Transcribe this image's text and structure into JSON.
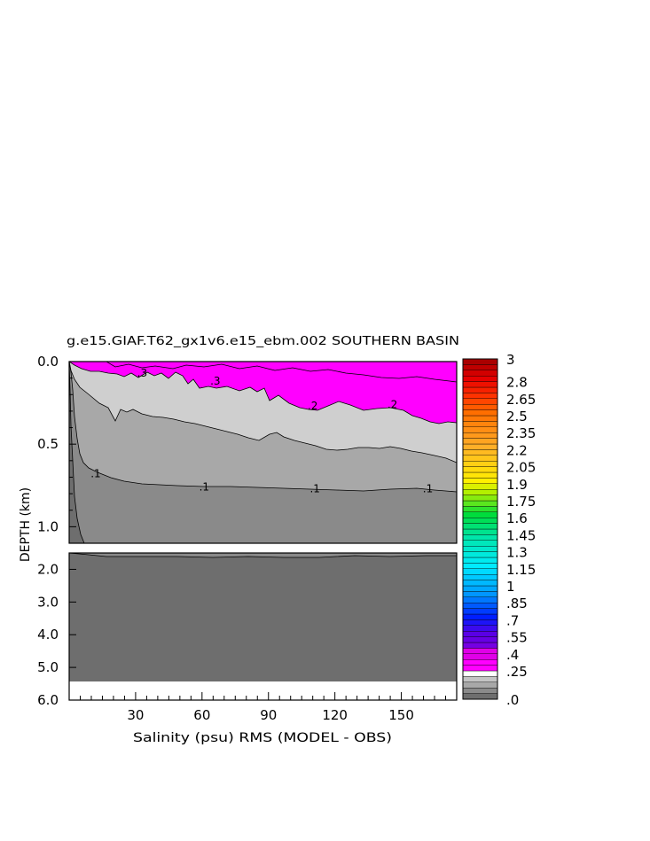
{
  "chart_data": {
    "type": "contour",
    "title": "g.e15.GIAF.T62_gx1v6.e15_ebm.002 SOUTHERN BASIN",
    "xlabel": "Salinity (psu) RMS (MODEL - OBS)",
    "ylabel": "DEPTH (km)",
    "x_ticks": [
      30,
      60,
      90,
      120,
      150
    ],
    "xlim": [
      0,
      175
    ],
    "upper_panel": {
      "ylim": [
        0.0,
        1.1
      ],
      "y_ticks": [
        "0.0",
        "0.5",
        "1.0"
      ]
    },
    "lower_panel": {
      "ylim": [
        1.5,
        6.0
      ],
      "y_ticks": [
        "2.0",
        "3.0",
        "4.0",
        "5.0",
        "6.0"
      ]
    },
    "contour_labels": [
      {
        "text": ".3",
        "x": 33,
        "depth": 0.08
      },
      {
        "text": ".3",
        "x": 66,
        "depth": 0.13
      },
      {
        "text": ".2",
        "x": 110,
        "depth": 0.28
      },
      {
        "text": ".2",
        "x": 146,
        "depth": 0.27
      },
      {
        "text": ".1",
        "x": 12,
        "depth": 0.69
      },
      {
        "text": ".1",
        "x": 61,
        "depth": 0.77
      },
      {
        "text": ".1",
        "x": 111,
        "depth": 0.78
      },
      {
        "text": ".1",
        "x": 162,
        "depth": 0.78
      }
    ],
    "colorbar": {
      "labels": [
        "3",
        "2.8",
        "2.65",
        "2.5",
        "2.35",
        "2.2",
        "2.05",
        "1.9",
        "1.75",
        "1.6",
        "1.45",
        "1.3",
        "1.15",
        "1",
        ".85",
        ".7",
        ".55",
        ".4",
        ".25",
        ".0"
      ],
      "range": [
        0,
        3
      ],
      "interval": 0.05
    },
    "fill_colors": {
      "above_0_25": "#ff00ff",
      "0_2_to_0_25": "#cfcfcf",
      "0_15_to_0_2": "#cfcfcf",
      "0_1_to_0_15": "#a8a8a8",
      "0_05_to_0_1": "#8a8a8a",
      "below_0_05": "#6e6e6e",
      "no_data": "#ffffff"
    }
  }
}
